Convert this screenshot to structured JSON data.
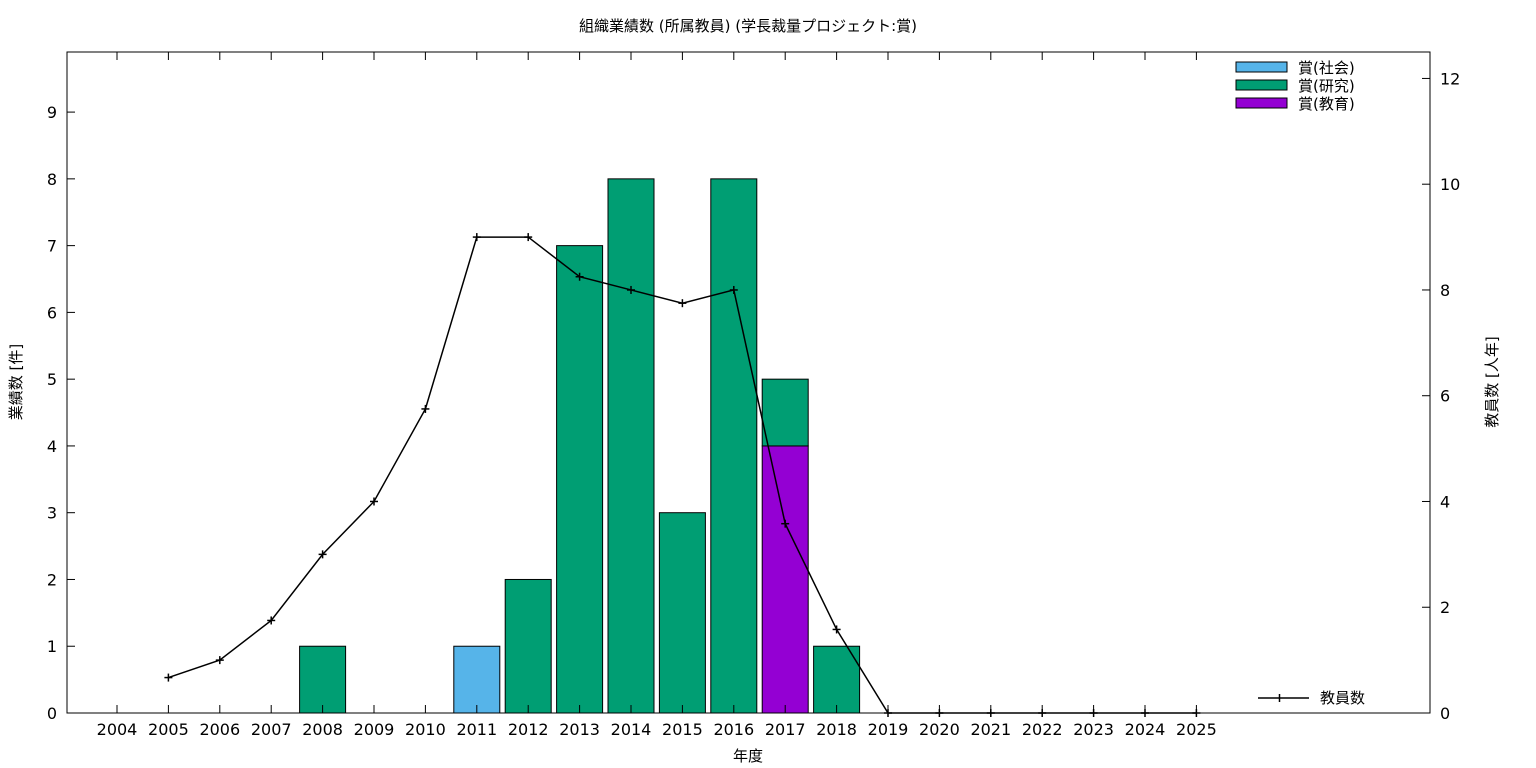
{
  "chart_data": {
    "type": "bar",
    "title": "組織業績数 (所属教員) (学長裁量プロジェクト:賞)",
    "xlabel": "年度",
    "ylabel": "業績数 [件]",
    "y2label": "教員数 [人年]",
    "categories": [
      "2004",
      "2005",
      "2006",
      "2007",
      "2008",
      "2009",
      "2010",
      "2011",
      "2012",
      "2013",
      "2014",
      "2015",
      "2016",
      "2017",
      "2018",
      "2019",
      "2020",
      "2021",
      "2022",
      "2023",
      "2024",
      "2025"
    ],
    "ylim": [
      0,
      9.9
    ],
    "y2lim": [
      0,
      12.5
    ],
    "yticks": [
      0,
      1,
      2,
      3,
      4,
      5,
      6,
      7,
      8,
      9
    ],
    "y2ticks": [
      0,
      2,
      4,
      6,
      8,
      10,
      12
    ],
    "stacked": true,
    "series": [
      {
        "name": "賞(教育)",
        "color": "#9400d3",
        "values": [
          0,
          0,
          0,
          0,
          0,
          0,
          0,
          0,
          0,
          0,
          0,
          0,
          0,
          4,
          0,
          0,
          0,
          0,
          0,
          0,
          0,
          0
        ]
      },
      {
        "name": "賞(研究)",
        "color": "#009e73",
        "values": [
          0,
          0,
          0,
          0,
          1,
          0,
          0,
          0,
          2,
          7,
          8,
          3,
          8,
          1,
          1,
          0,
          0,
          0,
          0,
          0,
          0,
          0
        ]
      },
      {
        "name": "賞(社会)",
        "color": "#56b4e9",
        "values": [
          0,
          0,
          0,
          0,
          0,
          0,
          0,
          1,
          0,
          0,
          0,
          0,
          0,
          0,
          0,
          0,
          0,
          0,
          0,
          0,
          0,
          0
        ]
      }
    ],
    "legend_order": [
      "賞(社会)",
      "賞(研究)",
      "賞(教育)"
    ],
    "legend_position": "top-right",
    "line_series": {
      "name": "教員数",
      "axis": "y2",
      "color": "#000000",
      "legend_position": "bottom-right",
      "values": [
        null,
        0.67,
        1.0,
        1.75,
        3.0,
        4.0,
        5.75,
        9.0,
        9.0,
        8.25,
        8.0,
        7.75,
        8.0,
        3.58,
        1.58,
        0,
        0,
        0,
        0,
        0,
        0,
        0
      ]
    },
    "grid": false
  }
}
